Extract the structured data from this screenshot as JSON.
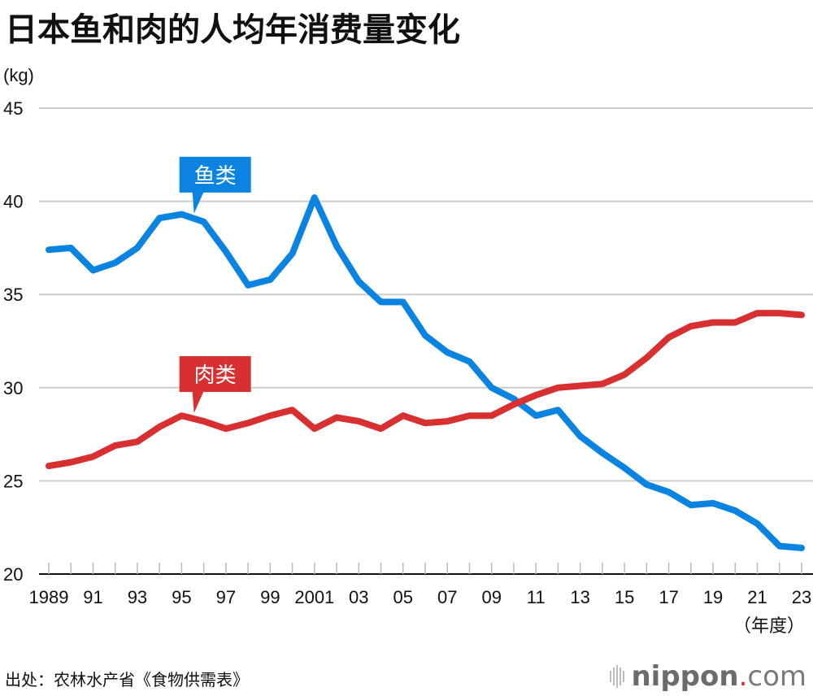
{
  "title": "日本鱼和肉的人均年消费量变化",
  "unit_label": "(kg)",
  "x_unit_label": "（年度）",
  "source": "出处：农林水产省《食物供需表》",
  "brand": {
    "name": "nippon",
    "dot": ".",
    "suffix": "com"
  },
  "colors": {
    "fish": "#0a84e0",
    "meat": "#d83030",
    "grid": "#cccccc",
    "axis": "#111111"
  },
  "chart_data": {
    "type": "line",
    "title": "日本鱼和肉的人均年消费量变化",
    "xlabel": "（年度）",
    "ylabel": "(kg)",
    "ylim": [
      20,
      45
    ],
    "yticks": [
      20,
      25,
      30,
      35,
      40,
      45
    ],
    "xlim": [
      1989,
      2023
    ],
    "x": [
      1989,
      1990,
      1991,
      1992,
      1993,
      1994,
      1995,
      1996,
      1997,
      1998,
      1999,
      2000,
      2001,
      2002,
      2003,
      2004,
      2005,
      2006,
      2007,
      2008,
      2009,
      2010,
      2011,
      2012,
      2013,
      2014,
      2015,
      2016,
      2017,
      2018,
      2019,
      2020,
      2021,
      2022,
      2023
    ],
    "xtick_labels": [
      {
        "year": 1989,
        "label": "1989"
      },
      {
        "year": 1991,
        "label": "91"
      },
      {
        "year": 1993,
        "label": "93"
      },
      {
        "year": 1995,
        "label": "95"
      },
      {
        "year": 1997,
        "label": "97"
      },
      {
        "year": 1999,
        "label": "99"
      },
      {
        "year": 2001,
        "label": "2001"
      },
      {
        "year": 2003,
        "label": "03"
      },
      {
        "year": 2005,
        "label": "05"
      },
      {
        "year": 2007,
        "label": "07"
      },
      {
        "year": 2009,
        "label": "09"
      },
      {
        "year": 2011,
        "label": "11"
      },
      {
        "year": 2013,
        "label": "13"
      },
      {
        "year": 2015,
        "label": "15"
      },
      {
        "year": 2017,
        "label": "17"
      },
      {
        "year": 2019,
        "label": "19"
      },
      {
        "year": 2021,
        "label": "21"
      },
      {
        "year": 2023,
        "label": "23"
      }
    ],
    "grid": true,
    "series": [
      {
        "name": "鱼类",
        "key": "fish",
        "label_year": 1996,
        "values": [
          37.4,
          37.5,
          36.3,
          36.7,
          37.5,
          39.1,
          39.3,
          38.9,
          37.3,
          35.5,
          35.8,
          37.2,
          40.2,
          37.6,
          35.7,
          34.6,
          34.6,
          32.8,
          31.9,
          31.4,
          30.0,
          29.4,
          28.5,
          28.8,
          27.4,
          26.5,
          25.7,
          24.8,
          24.4,
          23.7,
          23.8,
          23.4,
          22.7,
          21.5,
          21.4
        ]
      },
      {
        "name": "肉类",
        "key": "meat",
        "label_year": 1996,
        "values": [
          25.8,
          26.0,
          26.3,
          26.9,
          27.1,
          27.9,
          28.5,
          28.2,
          27.8,
          28.1,
          28.5,
          28.8,
          27.8,
          28.4,
          28.2,
          27.8,
          28.5,
          28.1,
          28.2,
          28.5,
          28.5,
          29.1,
          29.6,
          30.0,
          30.1,
          30.2,
          30.7,
          31.6,
          32.7,
          33.3,
          33.5,
          33.5,
          34.0,
          34.0,
          33.9
        ]
      }
    ],
    "legend": "inline-callouts"
  }
}
